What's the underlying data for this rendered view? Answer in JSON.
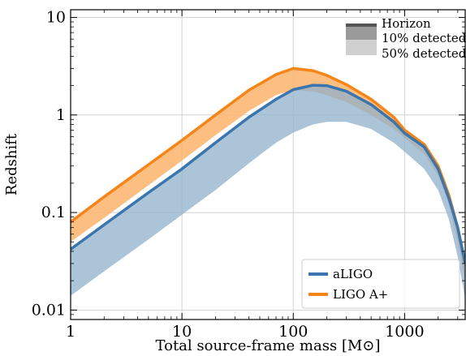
{
  "chart_data": {
    "type": "area",
    "xlabel": "Total source-frame mass [M⊙]",
    "ylabel": "Redshift",
    "xscale": "log",
    "yscale": "log",
    "xlim": [
      1,
      3500
    ],
    "ylim": [
      0.008,
      12
    ],
    "xticks": [
      1,
      10,
      100,
      1000
    ],
    "xtick_labels": [
      "1",
      "10",
      "100",
      "1000"
    ],
    "yticks": [
      0.01,
      0.1,
      1,
      10
    ],
    "ytick_labels": [
      "0.01",
      "0.1",
      "1",
      "10"
    ],
    "grid": true,
    "series": [
      {
        "name": "aLIGO",
        "color": "#3a75ad",
        "band_color": "#8fb0cb",
        "horizon": [
          [
            1,
            0.042
          ],
          [
            2,
            0.075
          ],
          [
            5,
            0.16
          ],
          [
            10,
            0.28
          ],
          [
            20,
            0.52
          ],
          [
            40,
            0.95
          ],
          [
            70,
            1.45
          ],
          [
            100,
            1.82
          ],
          [
            150,
            2.02
          ],
          [
            200,
            2.0
          ],
          [
            300,
            1.75
          ],
          [
            500,
            1.28
          ],
          [
            800,
            0.85
          ],
          [
            1000,
            0.65
          ],
          [
            1500,
            0.47
          ],
          [
            2000,
            0.28
          ],
          [
            2500,
            0.14
          ],
          [
            3000,
            0.07
          ],
          [
            3500,
            0.03
          ]
        ],
        "detected_50": [
          [
            1,
            0.014
          ],
          [
            2,
            0.025
          ],
          [
            5,
            0.053
          ],
          [
            10,
            0.095
          ],
          [
            20,
            0.17
          ],
          [
            40,
            0.32
          ],
          [
            70,
            0.52
          ],
          [
            100,
            0.66
          ],
          [
            150,
            0.8
          ],
          [
            200,
            0.85
          ],
          [
            300,
            0.85
          ],
          [
            500,
            0.72
          ],
          [
            800,
            0.52
          ],
          [
            1000,
            0.42
          ],
          [
            1500,
            0.28
          ],
          [
            2000,
            0.17
          ],
          [
            2500,
            0.085
          ],
          [
            3000,
            0.035
          ],
          [
            3500,
            0.013
          ]
        ]
      },
      {
        "name": "LIGO A+",
        "color": "#f58518",
        "band_color": "#fdb46b",
        "horizon": [
          [
            1,
            0.08
          ],
          [
            2,
            0.145
          ],
          [
            5,
            0.31
          ],
          [
            10,
            0.55
          ],
          [
            20,
            1.0
          ],
          [
            40,
            1.8
          ],
          [
            70,
            2.6
          ],
          [
            100,
            3.0
          ],
          [
            150,
            2.85
          ],
          [
            200,
            2.55
          ],
          [
            300,
            2.05
          ],
          [
            500,
            1.45
          ],
          [
            800,
            0.95
          ],
          [
            1000,
            0.7
          ],
          [
            1500,
            0.5
          ],
          [
            2000,
            0.3
          ],
          [
            2500,
            0.15
          ],
          [
            3000,
            0.07
          ],
          [
            3500,
            0.03
          ]
        ],
        "detected_50": [
          [
            1,
            0.05
          ],
          [
            2,
            0.088
          ],
          [
            5,
            0.19
          ],
          [
            10,
            0.34
          ],
          [
            20,
            0.62
          ],
          [
            40,
            1.1
          ],
          [
            70,
            1.6
          ],
          [
            100,
            1.8
          ],
          [
            150,
            1.75
          ],
          [
            200,
            1.6
          ],
          [
            300,
            1.35
          ],
          [
            500,
            1.0
          ],
          [
            800,
            0.72
          ],
          [
            1000,
            0.58
          ],
          [
            1500,
            0.4
          ],
          [
            2000,
            0.24
          ],
          [
            2500,
            0.12
          ],
          [
            3000,
            0.05
          ],
          [
            3500,
            0.02
          ]
        ]
      }
    ],
    "legend_top": {
      "placement": "top-right",
      "entries": [
        {
          "label": "Horizon",
          "color": "#555555"
        },
        {
          "label": "10% detected",
          "color": "#9a9a9a"
        },
        {
          "label": "50% detected",
          "color": "#d0d0d0"
        }
      ]
    },
    "legend_bottom": {
      "placement": "bottom-right",
      "entries": [
        {
          "label": "aLIGO",
          "color": "#3a75ad"
        },
        {
          "label": "LIGO A+",
          "color": "#f58518"
        }
      ]
    }
  }
}
